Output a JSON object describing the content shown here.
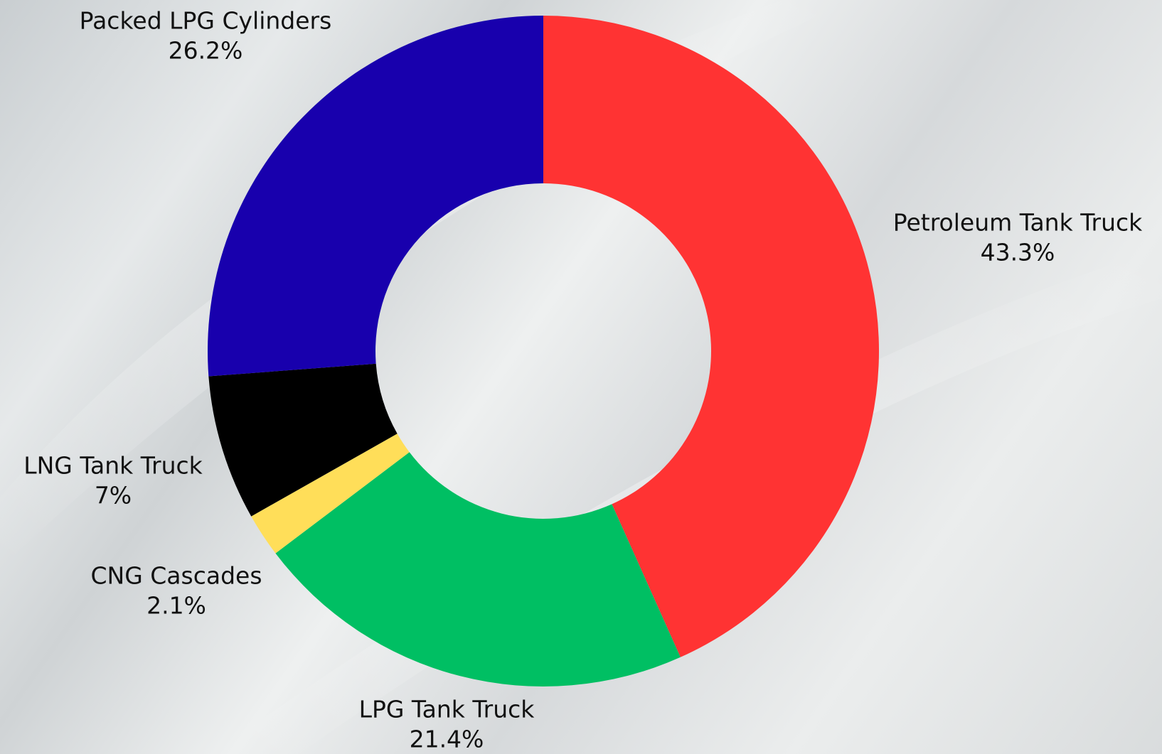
{
  "chart_data": {
    "type": "pie",
    "categories": [
      "Petroleum Tank Truck",
      "LPG Tank Truck",
      "CNG Cascades",
      "LNG Tank Truck",
      "Packed LPG Cylinders"
    ],
    "values": [
      43.3,
      21.4,
      2.1,
      7,
      26.2
    ],
    "value_labels": [
      "43.3%",
      "21.4%",
      "2.1%",
      "7%",
      "26.2%"
    ],
    "colors": [
      "#ff3333",
      "#00bf63",
      "#ffde59",
      "#000000",
      "#1800ad"
    ]
  }
}
